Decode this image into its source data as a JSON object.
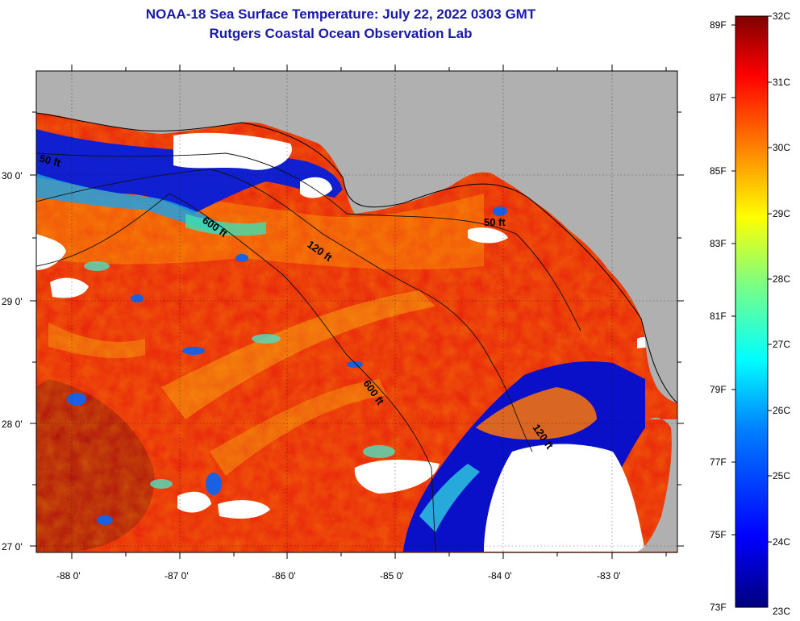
{
  "title": "NOAA-18 Sea Surface Temperature:  July 22, 2022 0303 GMT",
  "subtitle": "Rutgers Coastal Ocean Observation Lab",
  "colors": {
    "land": "#b0b0b0",
    "no_data": "#ffffff",
    "frame": "#000000",
    "title": "#1a1aa8",
    "colorbar_stops": [
      "#00007f",
      "#0000ff",
      "#007fff",
      "#00ffff",
      "#7fff7f",
      "#ffff00",
      "#ff7f00",
      "#ff0000",
      "#7f0000"
    ]
  },
  "axes": {
    "x_ticks": [
      "-88 0'",
      "-87 0'",
      "-86 0'",
      "-85 0'",
      "-84 0'",
      "-83 0'"
    ],
    "y_ticks": [
      "30 0'",
      "29 0'",
      "28 0'",
      "27 0'"
    ]
  },
  "colorbar": {
    "f_labels": [
      "89F",
      "87F",
      "85F",
      "83F",
      "81F",
      "79F",
      "77F",
      "75F",
      "73F"
    ],
    "c_labels": [
      "32C",
      "31C",
      "30C",
      "29C",
      "28C",
      "27C",
      "26C",
      "25C",
      "24C",
      "23C"
    ]
  },
  "contour_labels": [
    "50 ft",
    "600 ft",
    "120 ft",
    "50 ft",
    "600 ft",
    "120 ft"
  ]
}
